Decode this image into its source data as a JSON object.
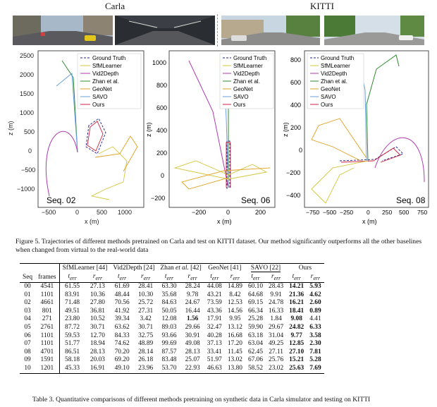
{
  "datasets": {
    "left": "Carla",
    "right": "KITTI"
  },
  "plots": [
    {
      "seq_label": "Seq. 02",
      "xlabel": "x (m)",
      "ylabel": "z (m)",
      "xticks": [
        "−500",
        "0",
        "500",
        "1000"
      ],
      "yticks": [
        "2500",
        "2000",
        "1500",
        "1000",
        "500",
        "0",
        "−500",
        "−1000"
      ],
      "legend": [
        "Ground Truth",
        "SfMLearner",
        "Vid2Depth",
        "Zhan et al.",
        "GeoNet",
        "SAVO",
        "Ours"
      ]
    },
    {
      "seq_label": "Seq. 06",
      "xlabel": "x (m)",
      "ylabel": "z (m)",
      "xticks": [
        "−200",
        "0",
        "200"
      ],
      "yticks": [
        "1000",
        "800",
        "600",
        "400",
        "200",
        "0",
        "−200"
      ],
      "legend": [
        "Ground Truth",
        "SfMLearner",
        "Vid2Depth",
        "Zhan et al.",
        "GeoNet",
        "SAVO",
        "Ours"
      ]
    },
    {
      "seq_label": "Seq. 08",
      "xlabel": "x (m)",
      "ylabel": "z (m)",
      "xticks": [
        "−750",
        "−500",
        "−250",
        "0",
        "250",
        "500",
        "750"
      ],
      "yticks": [
        "800",
        "600",
        "400",
        "200",
        "0",
        "−200",
        "−400"
      ],
      "legend": [
        "Ground Truth",
        "SfMLearner",
        "Vid2Depth",
        "Zhan et al.",
        "GeoNet",
        "SAVO",
        "Ours"
      ]
    }
  ],
  "legend_colors": [
    "#1a1a8c",
    "#d4c63a",
    "#b03ab0",
    "#2e8b2e",
    "#e0a020",
    "#6aa0e0",
    "#d02040"
  ],
  "figure_caption": "Figure 5. Trajectories of different methods pretrained on Carla and test on KITTI dataset. Our method significantly outperforms all the other baselines when changed from virtual to the real-world data",
  "table": {
    "col_seq": "Seq",
    "col_frames": "frames",
    "methods": [
      {
        "name": "SfMLearner [44]",
        "ul": false
      },
      {
        "name": "Vid2Depth [24]",
        "ul": false
      },
      {
        "name_pre": "Zhan ",
        "name_it": "et al.",
        "name_post": " [42]",
        "ul": false
      },
      {
        "name": "GeoNet [41]",
        "ul": false
      },
      {
        "name": "SAVO [22]",
        "ul": true
      },
      {
        "name": "Ours",
        "ul": false
      }
    ],
    "sub_t": "t",
    "sub_r": "r",
    "sub_err": "err",
    "rows": [
      [
        "00",
        "4541",
        "61.55",
        "27.13",
        "61.69",
        "28.41",
        "63.30",
        "28.24",
        "44.08",
        "14.89",
        "60.10",
        "28.43",
        "14.21",
        "5.93"
      ],
      [
        "01",
        "1101",
        "83.91",
        "10.36",
        "48.44",
        "10.30",
        "35.68",
        "9.78",
        "43.21",
        "8.42",
        "64.68",
        "9.91",
        "21.36",
        "4.62"
      ],
      [
        "02",
        "4661",
        "71.48",
        "27.80",
        "70.56",
        "25.72",
        "84.63",
        "24.67",
        "73.59",
        "12.53",
        "69.15",
        "24.78",
        "16.21",
        "2.60"
      ],
      [
        "03",
        "801",
        "49.51",
        "36.81",
        "41.92",
        "27.31",
        "50.05",
        "16.44",
        "43.36",
        "14.56",
        "66.34",
        "16.33",
        "18.41",
        "0.89"
      ],
      [
        "04",
        "271",
        "23.80",
        "10.52",
        "39.34",
        "3.42",
        "12.08",
        "1.56",
        "17.91",
        "9.95",
        "25.28",
        "1.84",
        "9.08",
        "4.41"
      ],
      [
        "05",
        "2761",
        "87.72",
        "30.71",
        "63.62",
        "30.71",
        "89.03",
        "29.66",
        "32.47",
        "13.12",
        "59.90",
        "29.67",
        "24.82",
        "6.33"
      ],
      [
        "06",
        "1101",
        "59.53",
        "12.70",
        "84.33",
        "32.75",
        "93.66",
        "30.91",
        "40.28",
        "16.68",
        "63.18",
        "31.04",
        "9.77",
        "3.58"
      ],
      [
        "07",
        "1101",
        "51.77",
        "18.94",
        "74.62",
        "48.89",
        "99.69",
        "49.08",
        "37.13",
        "17.20",
        "63.04",
        "49.25",
        "12.85",
        "2.30"
      ],
      [
        "08",
        "4701",
        "86.51",
        "28.13",
        "70.20",
        "28.14",
        "87.57",
        "28.13",
        "33.41",
        "11.45",
        "62.45",
        "27.11",
        "27.10",
        "7.81"
      ],
      [
        "09",
        "1591",
        "58.18",
        "20.03",
        "69.20",
        "26.18",
        "83.48",
        "25.07",
        "51.97",
        "13.02",
        "67.06",
        "25.76",
        "15.21",
        "5.28"
      ],
      [
        "10",
        "1201",
        "45.33",
        "16.91",
        "49.10",
        "23.96",
        "53.70",
        "22.93",
        "46.63",
        "13.80",
        "58.52",
        "23.02",
        "25.63",
        "7.69"
      ]
    ],
    "bold": [
      [
        0,
        12
      ],
      [
        0,
        13
      ],
      [
        1,
        12
      ],
      [
        1,
        13
      ],
      [
        2,
        12
      ],
      [
        2,
        13
      ],
      [
        3,
        12
      ],
      [
        3,
        13
      ],
      [
        4,
        7
      ],
      [
        4,
        12
      ],
      [
        5,
        12
      ],
      [
        5,
        13
      ],
      [
        6,
        12
      ],
      [
        6,
        13
      ],
      [
        7,
        12
      ],
      [
        7,
        13
      ],
      [
        8,
        12
      ],
      [
        8,
        13
      ],
      [
        9,
        12
      ],
      [
        9,
        13
      ],
      [
        10,
        12
      ],
      [
        10,
        13
      ]
    ],
    "caption": "Table 3. Quantitative comparisons of different methods pretraining on synthetic data in Carla simulator and testing on KITTI"
  }
}
